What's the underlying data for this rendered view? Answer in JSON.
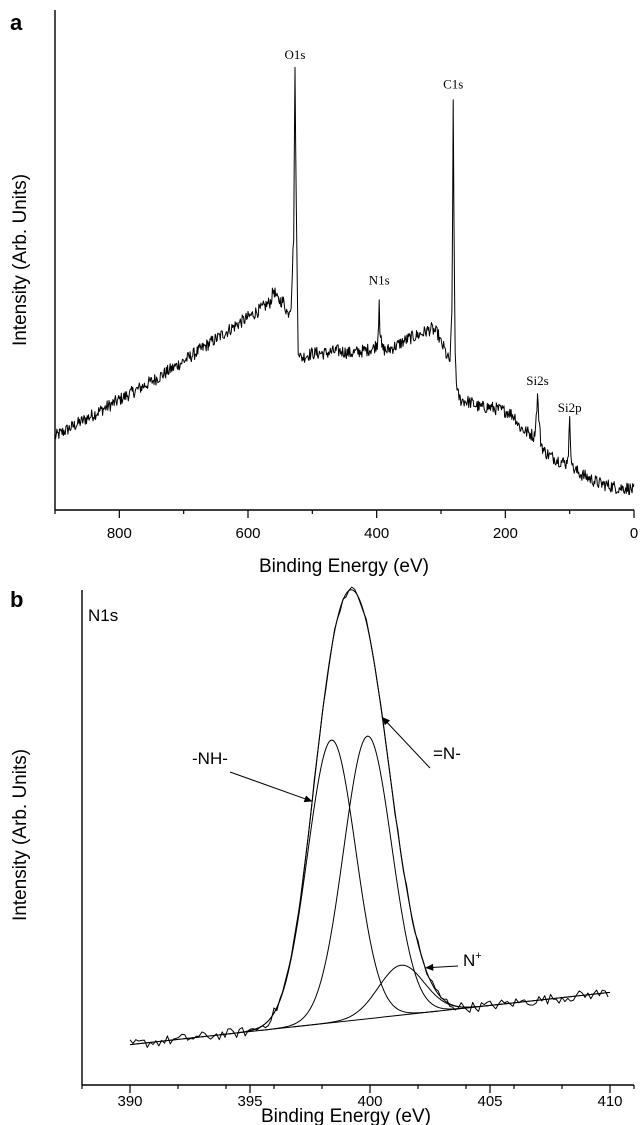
{
  "chart_data": [
    {
      "panel": "a",
      "type": "line",
      "xlabel": "Binding Energy (eV)",
      "ylabel": "Intensity (Arb. Units)",
      "xlim": [
        900,
        0
      ],
      "x_reversed": true,
      "xticks": [
        800,
        600,
        400,
        200,
        0
      ],
      "ylim": [
        0,
        100
      ],
      "grid": false,
      "series": [
        {
          "points": [
            [
              900,
              15.0
            ],
            [
              880,
              16.5
            ],
            [
              860,
              18.0
            ],
            [
              840,
              19.5
            ],
            [
              820,
              21.0
            ],
            [
              800,
              22.5
            ],
            [
              780,
              24.0
            ],
            [
              760,
              25.5
            ],
            [
              740,
              27.0
            ],
            [
              720,
              28.7
            ],
            [
              700,
              30.4
            ],
            [
              680,
              32.2
            ],
            [
              660,
              34.0
            ],
            [
              640,
              35.8
            ],
            [
              620,
              37.6
            ],
            [
              600,
              39.3
            ],
            [
              580,
              41.0
            ],
            [
              565,
              42.5
            ],
            [
              560,
              45.0
            ],
            [
              555,
              43.0
            ],
            [
              545,
              42.5
            ],
            [
              538,
              40.0
            ],
            [
              533,
              42.0
            ],
            [
              529,
              56.0
            ],
            [
              527,
              90.0
            ],
            [
              525,
              62.0
            ],
            [
              522,
              33.0
            ],
            [
              518,
              31.0
            ],
            [
              510,
              31.5
            ],
            [
              500,
              32.0
            ],
            [
              480,
              32.0
            ],
            [
              460,
              32.5
            ],
            [
              440,
              32.0
            ],
            [
              420,
              32.5
            ],
            [
              405,
              33.0
            ],
            [
              399,
              34.0
            ],
            [
              397,
              38.0
            ],
            [
              396,
              44.0
            ],
            [
              395,
              37.0
            ],
            [
              392,
              33.0
            ],
            [
              385,
              32.5
            ],
            [
              370,
              33.5
            ],
            [
              350,
              35.0
            ],
            [
              330,
              36.0
            ],
            [
              315,
              37.0
            ],
            [
              305,
              36.0
            ],
            [
              300,
              34.0
            ],
            [
              295,
              33.0
            ],
            [
              290,
              31.0
            ],
            [
              286,
              30.5
            ],
            [
              283,
              40.0
            ],
            [
              282,
              60.0
            ],
            [
              281,
              84.0
            ],
            [
              280,
              60.0
            ],
            [
              278,
              32.0
            ],
            [
              275,
              24.0
            ],
            [
              270,
              22.5
            ],
            [
              255,
              22.0
            ],
            [
              240,
              21.0
            ],
            [
              225,
              21.0
            ],
            [
              210,
              20.5
            ],
            [
              195,
              20.0
            ],
            [
              185,
              19.0
            ],
            [
              178,
              17.0
            ],
            [
              168,
              16.0
            ],
            [
              160,
              15.5
            ],
            [
              155,
              15.0
            ],
            [
              152,
              19.0
            ],
            [
              150,
              23.5
            ],
            [
              148,
              19.0
            ],
            [
              145,
              14.0
            ],
            [
              140,
              12.0
            ],
            [
              130,
              11.0
            ],
            [
              115,
              10.0
            ],
            [
              105,
              9.5
            ],
            [
              102,
              12.0
            ],
            [
              100,
              18.0
            ],
            [
              98,
              12.0
            ],
            [
              95,
              8.5
            ],
            [
              85,
              7.5
            ],
            [
              70,
              6.5
            ],
            [
              55,
              5.5
            ],
            [
              40,
              5.0
            ],
            [
              25,
              4.5
            ],
            [
              10,
              4.5
            ],
            [
              0,
              4.0
            ]
          ]
        }
      ],
      "annotations": [
        {
          "text": "O1s",
          "x": 527
        },
        {
          "text": "N1s",
          "x": 396
        },
        {
          "text": "C1s",
          "x": 281
        },
        {
          "text": "Si2s",
          "x": 150
        },
        {
          "text": "Si2p",
          "x": 100
        }
      ],
      "panel_label": "a"
    },
    {
      "panel": "b",
      "type": "line",
      "title": "N1s",
      "xlabel": "Binding Energy (eV)",
      "ylabel": "Intensity (Arb. Units)",
      "xlim": [
        388,
        411
      ],
      "xticks": [
        390,
        395,
        400,
        405,
        410
      ],
      "ylim": [
        0,
        100
      ],
      "grid": false,
      "baseline": {
        "x": [
          390,
          410
        ],
        "y": [
          8.5,
          19.5
        ]
      },
      "components": [
        {
          "name": "-NH-",
          "center": 398.4,
          "height": 59.5,
          "sigma": 1.0
        },
        {
          "name": "=N-",
          "center": 399.9,
          "height": 59.5,
          "sigma": 1.0
        },
        {
          "name": "N+",
          "center": 401.3,
          "height": 10.5,
          "sigma": 0.95
        }
      ],
      "annotations": [
        {
          "text": "-NH-",
          "target_x": 397.6
        },
        {
          "text": "=N-",
          "target_x": 400.5
        },
        {
          "text": "N+",
          "target_x": 402.3
        }
      ],
      "panel_label": "b"
    }
  ]
}
